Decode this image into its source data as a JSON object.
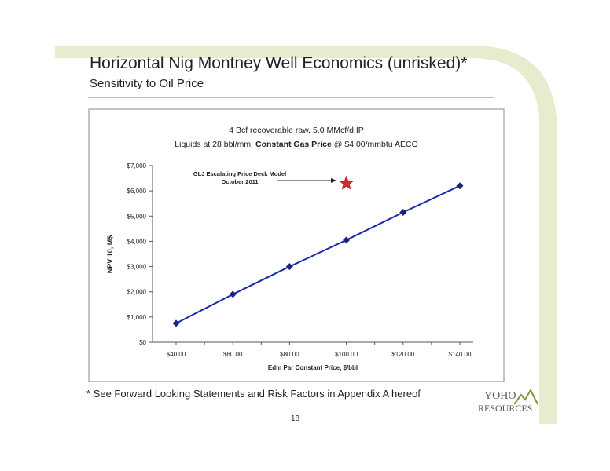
{
  "slide": {
    "title": "Horizontal Nig Montney Well Economics (unrisked)*",
    "subtitle": "Sensitivity to Oil Price",
    "footnote": "*  See Forward Looking Statements and Risk Factors in Appendix A hereof",
    "page_number": "18",
    "logo": {
      "line1": "YOHO",
      "line2": "RESOURCES"
    },
    "colors": {
      "accent_green": "#7a9a3a",
      "band_green": "#e6eccd",
      "series": "#1c2bb0",
      "marker": "#1a237e",
      "star": "#d3292a"
    }
  },
  "chart_data": {
    "type": "line",
    "title_line1": "4 Bcf recoverable raw, 5.0 MMcf/d IP",
    "title_line2_prefix": "Liquids at 28 bbl/mm, ",
    "title_line2_emphasis": "Constant Gas Price",
    "title_line2_suffix": " @ $4.00/mmbtu AECO",
    "xlabel": "Edm Par Constant Price, $/bbl",
    "ylabel": "NPV 10, M$",
    "x": [
      40,
      60,
      80,
      100,
      120,
      140
    ],
    "x_tick_labels": [
      "$40.00",
      "$60.00",
      "$80.00",
      "$100.00",
      "$120.00",
      "$140.00"
    ],
    "ylim": [
      0,
      7000
    ],
    "y_ticks": [
      0,
      1000,
      2000,
      3000,
      4000,
      5000,
      6000,
      7000
    ],
    "y_tick_labels": [
      "$0",
      "$1,000",
      "$2,000",
      "$3,000",
      "$4,000",
      "$5,000",
      "$6,000",
      "$7,000"
    ],
    "series": [
      {
        "values": [
          750,
          1900,
          3000,
          4050,
          5150,
          6200
        ]
      }
    ],
    "annotation": {
      "line1": "GLJ Escalating Price Deck Model",
      "line2": "October 2011",
      "marker": "star",
      "point": {
        "x": 100,
        "y": 6300
      }
    },
    "grid": false
  }
}
